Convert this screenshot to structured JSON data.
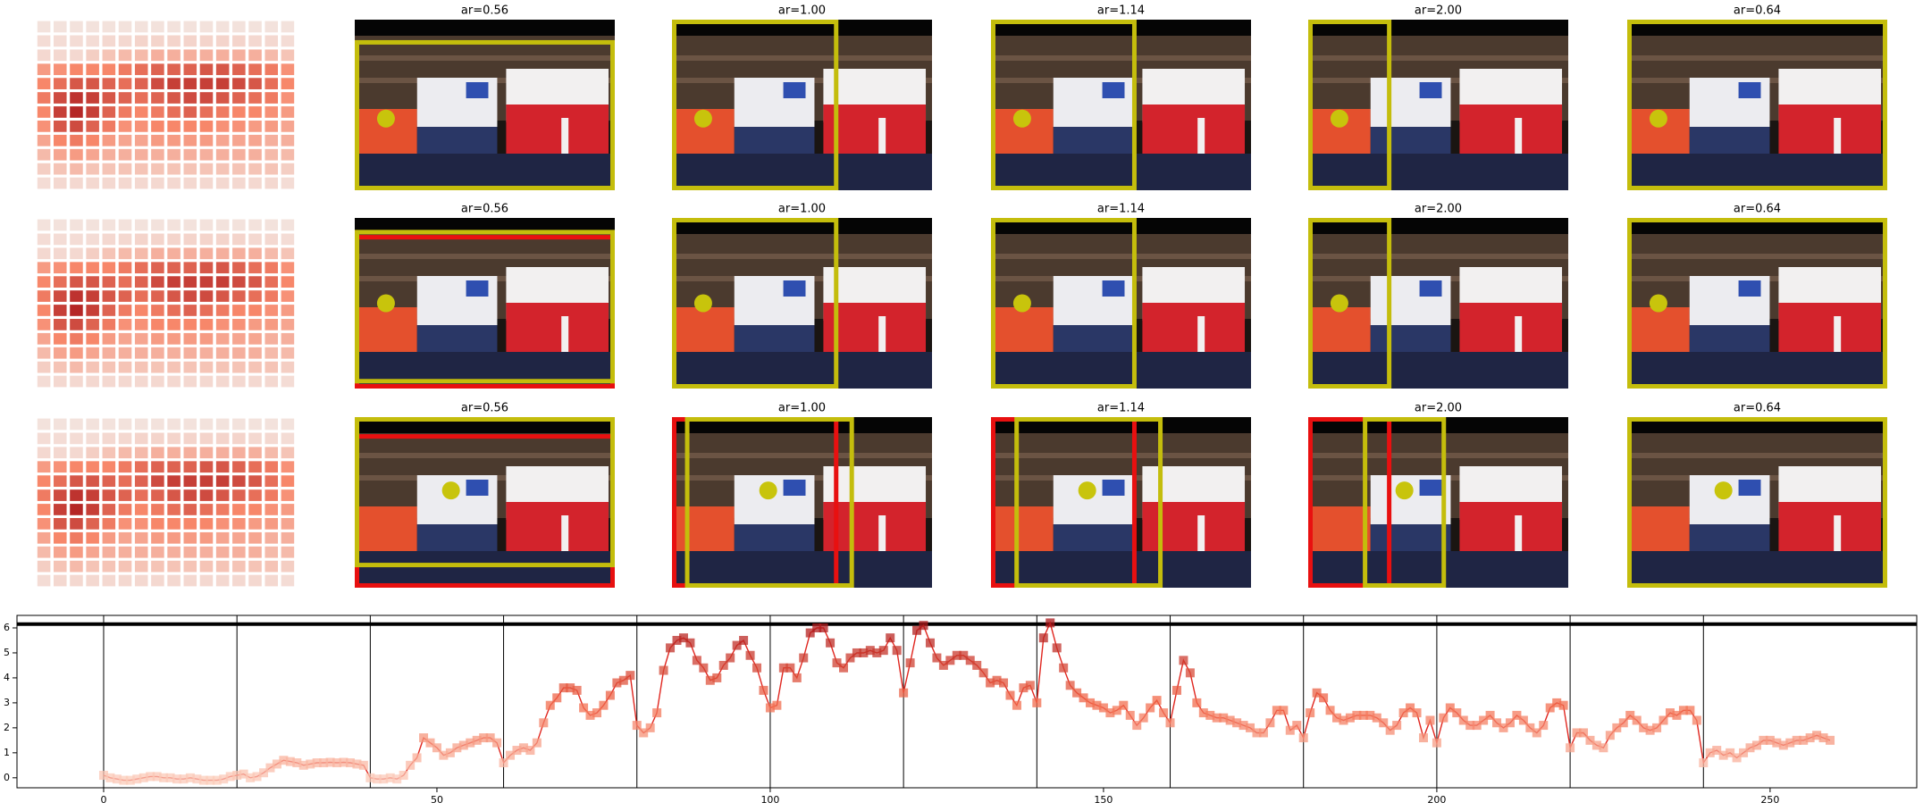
{
  "panels": {
    "rows": [
      {
        "titles": [
          "ar=0.56",
          "ar=1.00",
          "ar=1.14",
          "ar=2.00",
          "ar=0.64"
        ]
      },
      {
        "titles": [
          "ar=0.56",
          "ar=1.00",
          "ar=1.14",
          "ar=2.00",
          "ar=0.64"
        ]
      },
      {
        "titles": [
          "ar=0.56",
          "ar=1.00",
          "ar=1.14",
          "ar=2.00",
          "ar=0.64"
        ]
      }
    ],
    "heatmap": [
      [
        0.05,
        0.05,
        0.05,
        0.05,
        0.05,
        0.05,
        0.05,
        0.05,
        0.05,
        0.05,
        0.05,
        0.05,
        0.05,
        0.05,
        0.05,
        0.05
      ],
      [
        0.08,
        0.08,
        0.08,
        0.08,
        0.1,
        0.1,
        0.12,
        0.12,
        0.12,
        0.12,
        0.12,
        0.12,
        0.12,
        0.1,
        0.1,
        0.08
      ],
      [
        0.1,
        0.1,
        0.1,
        0.15,
        0.2,
        0.25,
        0.25,
        0.3,
        0.3,
        0.3,
        0.3,
        0.3,
        0.3,
        0.3,
        0.25,
        0.2
      ],
      [
        0.4,
        0.45,
        0.5,
        0.5,
        0.5,
        0.55,
        0.6,
        0.65,
        0.65,
        0.65,
        0.7,
        0.7,
        0.65,
        0.6,
        0.55,
        0.45
      ],
      [
        0.5,
        0.6,
        0.7,
        0.7,
        0.65,
        0.6,
        0.65,
        0.75,
        0.8,
        0.8,
        0.8,
        0.8,
        0.75,
        0.7,
        0.6,
        0.5
      ],
      [
        0.55,
        0.75,
        0.85,
        0.8,
        0.7,
        0.65,
        0.6,
        0.65,
        0.7,
        0.75,
        0.75,
        0.7,
        0.65,
        0.6,
        0.55,
        0.45
      ],
      [
        0.5,
        0.8,
        0.9,
        0.8,
        0.65,
        0.55,
        0.5,
        0.55,
        0.6,
        0.65,
        0.6,
        0.55,
        0.5,
        0.5,
        0.45,
        0.4
      ],
      [
        0.45,
        0.7,
        0.75,
        0.65,
        0.55,
        0.45,
        0.45,
        0.5,
        0.5,
        0.5,
        0.5,
        0.45,
        0.45,
        0.4,
        0.4,
        0.35
      ],
      [
        0.35,
        0.5,
        0.55,
        0.5,
        0.4,
        0.35,
        0.35,
        0.4,
        0.4,
        0.4,
        0.4,
        0.35,
        0.35,
        0.35,
        0.3,
        0.3
      ],
      [
        0.25,
        0.35,
        0.4,
        0.35,
        0.3,
        0.3,
        0.3,
        0.3,
        0.3,
        0.3,
        0.3,
        0.3,
        0.3,
        0.3,
        0.25,
        0.25
      ],
      [
        0.15,
        0.2,
        0.25,
        0.2,
        0.2,
        0.2,
        0.2,
        0.2,
        0.2,
        0.2,
        0.2,
        0.2,
        0.2,
        0.2,
        0.2,
        0.15
      ],
      [
        0.08,
        0.1,
        0.1,
        0.1,
        0.1,
        0.1,
        0.1,
        0.1,
        0.1,
        0.1,
        0.1,
        0.1,
        0.1,
        0.1,
        0.1,
        0.08
      ]
    ],
    "cmap": [
      "#f3ece9",
      "#f7876a",
      "#a50f15"
    ]
  },
  "chart_data": {
    "type": "line",
    "x": [
      0,
      1,
      2,
      3,
      4,
      5,
      6,
      7,
      8,
      9,
      10,
      11,
      12,
      13,
      14,
      15,
      16,
      17,
      18,
      19,
      20,
      21,
      22,
      23,
      24,
      25,
      26,
      27,
      28,
      29,
      30,
      31,
      32,
      33,
      34,
      35,
      36,
      37,
      38,
      39,
      40,
      41,
      42,
      43,
      44,
      45,
      46,
      47,
      48,
      49,
      50,
      51,
      52,
      53,
      54,
      55,
      56,
      57,
      58,
      59,
      60,
      61,
      62,
      63,
      64,
      65,
      66,
      67,
      68,
      69,
      70,
      71,
      72,
      73,
      74,
      75,
      76,
      77,
      78,
      79,
      80,
      81,
      82,
      83,
      84,
      85,
      86,
      87,
      88,
      89,
      90,
      91,
      92,
      93,
      94,
      95,
      96,
      97,
      98,
      99,
      100,
      101,
      102,
      103,
      104,
      105,
      106,
      107,
      108,
      109,
      110,
      111,
      112,
      113,
      114,
      115,
      116,
      117,
      118,
      119,
      120,
      121,
      122,
      123,
      124,
      125,
      126,
      127,
      128,
      129,
      130,
      131,
      132,
      133,
      134,
      135,
      136,
      137,
      138,
      139,
      140,
      141,
      142,
      143,
      144,
      145,
      146,
      147,
      148,
      149,
      150,
      151,
      152,
      153,
      154,
      155,
      156,
      157,
      158,
      159,
      160,
      161,
      162,
      163,
      164,
      165,
      166,
      167,
      168,
      169,
      170,
      171,
      172,
      173,
      174,
      175,
      176,
      177,
      178,
      179,
      180,
      181,
      182,
      183,
      184,
      185,
      186,
      187,
      188,
      189,
      190,
      191,
      192,
      193,
      194,
      195,
      196,
      197,
      198,
      199,
      200,
      201,
      202,
      203,
      204,
      205,
      206,
      207,
      208,
      209,
      210,
      211,
      212,
      213,
      214,
      215,
      216,
      217,
      218,
      219,
      220,
      221,
      222,
      223,
      224,
      225,
      226,
      227,
      228,
      229,
      230,
      231,
      232,
      233,
      234,
      235,
      236,
      237,
      238,
      239,
      240,
      241,
      242,
      243,
      244,
      245,
      246,
      247,
      248,
      249,
      250,
      251,
      252,
      253,
      254,
      255,
      256,
      257,
      258,
      259
    ],
    "values": [
      0.1,
      0.0,
      -0.05,
      -0.1,
      -0.1,
      -0.05,
      0,
      0.05,
      0.05,
      0,
      0,
      -0.05,
      -0.05,
      0,
      -0.05,
      -0.1,
      -0.1,
      -0.1,
      -0.05,
      0.05,
      0.1,
      0.15,
      0.0,
      0.05,
      0.2,
      0.4,
      0.55,
      0.7,
      0.65,
      0.6,
      0.5,
      0.55,
      0.6,
      0.6,
      0.62,
      0.6,
      0.62,
      0.6,
      0.55,
      0.5,
      0.0,
      -0.05,
      -0.05,
      0.0,
      -0.05,
      0.1,
      0.5,
      0.8,
      1.6,
      1.4,
      1.2,
      0.9,
      1.0,
      1.2,
      1.3,
      1.4,
      1.5,
      1.6,
      1.6,
      1.4,
      0.6,
      0.9,
      1.1,
      1.2,
      1.1,
      1.4,
      2.2,
      2.9,
      3.2,
      3.6,
      3.6,
      3.5,
      2.8,
      2.5,
      2.6,
      2.9,
      3.3,
      3.8,
      3.9,
      4.1,
      2.1,
      1.8,
      2.0,
      2.6,
      4.3,
      5.2,
      5.5,
      5.6,
      5.4,
      4.7,
      4.4,
      3.9,
      4.0,
      4.5,
      4.8,
      5.3,
      5.5,
      4.9,
      4.4,
      3.5,
      2.8,
      2.9,
      4.4,
      4.4,
      4.0,
      4.8,
      5.8,
      6.0,
      6.0,
      5.4,
      4.6,
      4.4,
      4.8,
      5.0,
      5.0,
      5.1,
      5.0,
      5.1,
      5.6,
      5.1,
      3.4,
      4.6,
      5.9,
      6.1,
      5.4,
      4.8,
      4.5,
      4.7,
      4.9,
      4.9,
      4.7,
      4.5,
      4.2,
      3.8,
      3.9,
      3.8,
      3.3,
      2.9,
      3.6,
      3.7,
      3.0,
      5.6,
      6.2,
      5.2,
      4.4,
      3.7,
      3.4,
      3.2,
      3.0,
      2.9,
      2.8,
      2.6,
      2.7,
      2.9,
      2.5,
      2.1,
      2.4,
      2.8,
      3.1,
      2.6,
      2.2,
      3.5,
      4.7,
      4.2,
      3.0,
      2.6,
      2.5,
      2.4,
      2.4,
      2.3,
      2.2,
      2.1,
      2.0,
      1.8,
      1.8,
      2.2,
      2.7,
      2.7,
      1.9,
      2.1,
      1.6,
      2.6,
      3.4,
      3.2,
      2.7,
      2.4,
      2.3,
      2.4,
      2.5,
      2.5,
      2.5,
      2.4,
      2.2,
      1.9,
      2.1,
      2.6,
      2.8,
      2.6,
      1.6,
      2.3,
      1.4,
      2.4,
      2.8,
      2.6,
      2.3,
      2.1,
      2.1,
      2.3,
      2.5,
      2.2,
      2.0,
      2.2,
      2.5,
      2.3,
      2.0,
      1.8,
      2.1,
      2.8,
      3.0,
      2.9,
      1.2,
      1.8,
      1.8,
      1.5,
      1.3,
      1.2,
      1.7,
      2.0,
      2.2,
      2.5,
      2.3,
      2.0,
      1.9,
      2.0,
      2.3,
      2.6,
      2.5,
      2.7,
      2.7,
      2.3,
      0.6,
      1.0,
      1.1,
      0.9,
      1.0,
      0.8,
      1.0,
      1.2,
      1.3,
      1.5,
      1.5,
      1.4,
      1.3,
      1.4,
      1.5,
      1.5,
      1.6,
      1.7,
      1.6,
      1.5
    ],
    "color": "#e0261f",
    "marker_cmap": [
      "#fcd5c5",
      "#f26a4b",
      "#a50f15"
    ],
    "xlim": [
      -13,
      272
    ],
    "ylim": [
      -0.4,
      6.5
    ],
    "xticks": [
      0,
      50,
      100,
      150,
      200,
      250
    ],
    "yticks": [
      0,
      1,
      2,
      3,
      4,
      5,
      6
    ],
    "vlines": [
      0,
      20,
      40,
      60,
      80,
      100,
      120,
      140,
      160,
      180,
      200,
      220,
      240
    ],
    "hline": 6.15
  }
}
